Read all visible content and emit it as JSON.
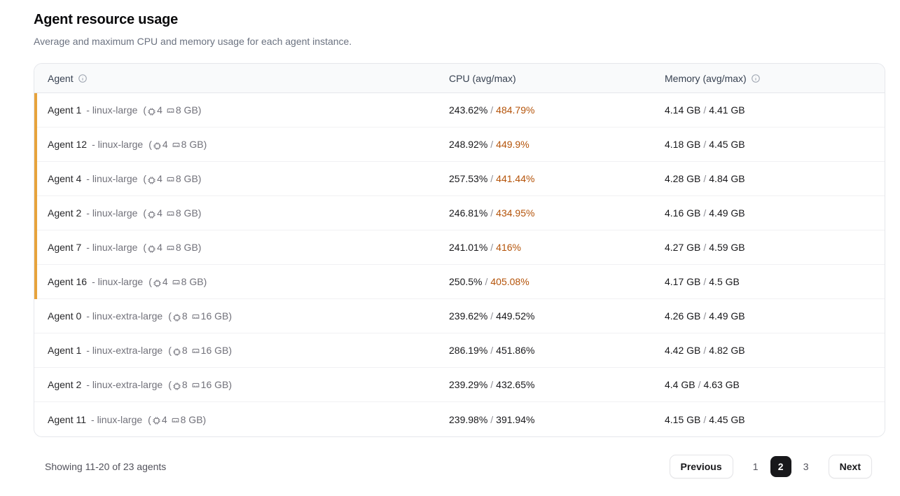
{
  "header": {
    "title": "Agent resource usage",
    "subtitle": "Average and maximum CPU and memory usage for each agent instance."
  },
  "table": {
    "columns": {
      "agent": "Agent",
      "cpu": "CPU (avg/max)",
      "memory": "Memory (avg/max)"
    },
    "spec_open": "(",
    "spec_close": ")",
    "value_separator": "/",
    "rows": [
      {
        "name": "Agent 1",
        "type": "- linux-large",
        "cpu_count": "4",
        "memory_size": "8 GB",
        "cpu_avg": "243.62%",
        "cpu_max": "484.79%",
        "mem_avg": "4.14 GB",
        "mem_max": "4.41 GB",
        "highlight": true
      },
      {
        "name": "Agent 12",
        "type": "- linux-large",
        "cpu_count": "4",
        "memory_size": "8 GB",
        "cpu_avg": "248.92%",
        "cpu_max": "449.9%",
        "mem_avg": "4.18 GB",
        "mem_max": "4.45 GB",
        "highlight": true
      },
      {
        "name": "Agent 4",
        "type": "- linux-large",
        "cpu_count": "4",
        "memory_size": "8 GB",
        "cpu_avg": "257.53%",
        "cpu_max": "441.44%",
        "mem_avg": "4.28 GB",
        "mem_max": "4.84 GB",
        "highlight": true
      },
      {
        "name": "Agent 2",
        "type": "- linux-large",
        "cpu_count": "4",
        "memory_size": "8 GB",
        "cpu_avg": "246.81%",
        "cpu_max": "434.95%",
        "mem_avg": "4.16 GB",
        "mem_max": "4.49 GB",
        "highlight": true
      },
      {
        "name": "Agent 7",
        "type": "- linux-large",
        "cpu_count": "4",
        "memory_size": "8 GB",
        "cpu_avg": "241.01%",
        "cpu_max": "416%",
        "mem_avg": "4.27 GB",
        "mem_max": "4.59 GB",
        "highlight": true
      },
      {
        "name": "Agent 16",
        "type": "- linux-large",
        "cpu_count": "4",
        "memory_size": "8 GB",
        "cpu_avg": "250.5%",
        "cpu_max": "405.08%",
        "mem_avg": "4.17 GB",
        "mem_max": "4.5 GB",
        "highlight": true
      },
      {
        "name": "Agent 0",
        "type": "- linux-extra-large",
        "cpu_count": "8",
        "memory_size": "16 GB",
        "cpu_avg": "239.62%",
        "cpu_max": "449.52%",
        "mem_avg": "4.26 GB",
        "mem_max": "4.49 GB",
        "highlight": false
      },
      {
        "name": "Agent 1",
        "type": "- linux-extra-large",
        "cpu_count": "8",
        "memory_size": "16 GB",
        "cpu_avg": "286.19%",
        "cpu_max": "451.86%",
        "mem_avg": "4.42 GB",
        "mem_max": "4.82 GB",
        "highlight": false
      },
      {
        "name": "Agent 2",
        "type": "- linux-extra-large",
        "cpu_count": "8",
        "memory_size": "16 GB",
        "cpu_avg": "239.29%",
        "cpu_max": "432.65%",
        "mem_avg": "4.4 GB",
        "mem_max": "4.63 GB",
        "highlight": false
      },
      {
        "name": "Agent 11",
        "type": "- linux-large",
        "cpu_count": "4",
        "memory_size": "8 GB",
        "cpu_avg": "239.98%",
        "cpu_max": "391.94%",
        "mem_avg": "4.15 GB",
        "mem_max": "4.45 GB",
        "highlight": false
      }
    ]
  },
  "footer": {
    "showing": "Showing 11-20 of 23 agents",
    "pagination": {
      "previous_label": "Previous",
      "next_label": "Next",
      "pages": [
        "1",
        "2",
        "3"
      ],
      "active_page": "2"
    }
  },
  "colors": {
    "highlight_bar": "#e7a33c",
    "cpu_max_highlight": "#b45309",
    "active_page_bg": "#18181b",
    "header_bg": "#f9fafb",
    "table_border": "#e5e7eb"
  }
}
